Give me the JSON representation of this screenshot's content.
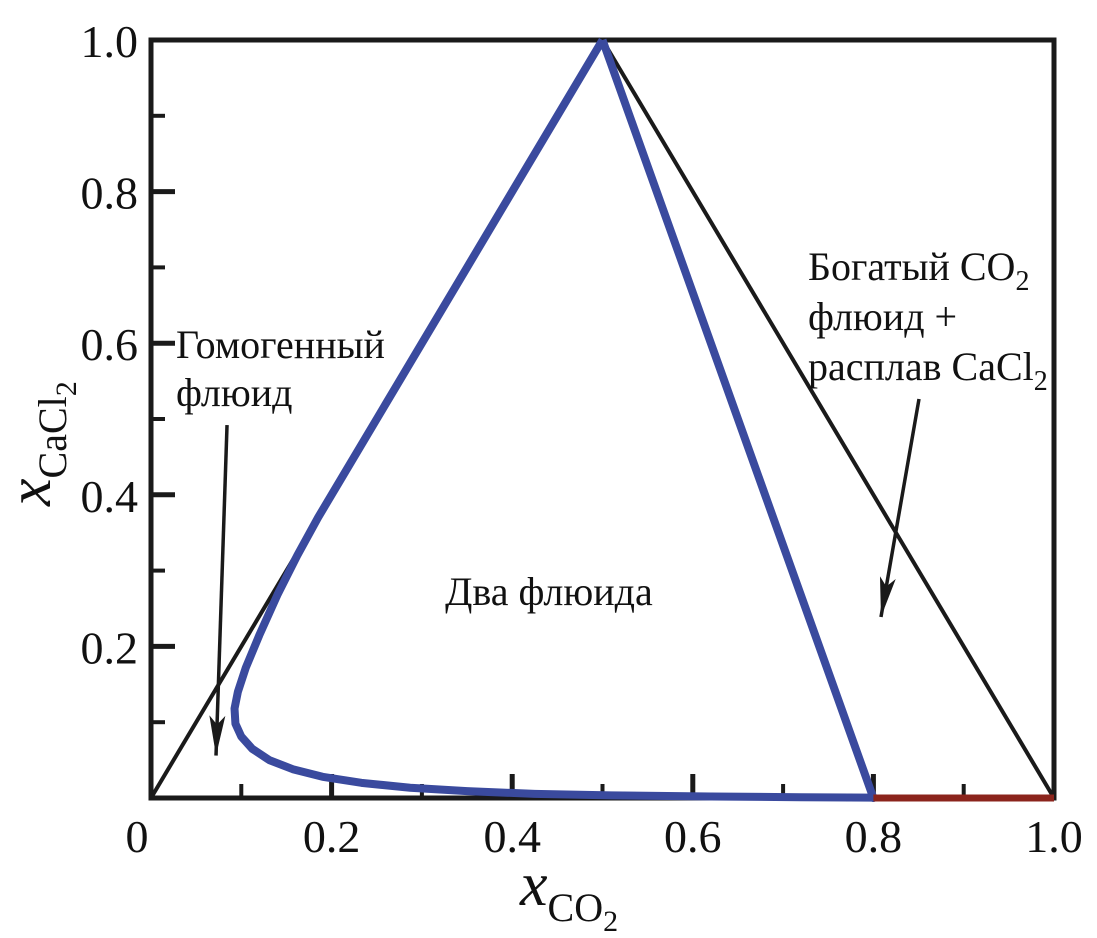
{
  "figure": {
    "background": "#ffffff",
    "colors": {
      "frame": "#1a1a1a",
      "mixing_line": "#1a1a1a",
      "two_fluid_boundary_blue": "#3a4a9e",
      "cacl2_melt_red": "#8b241c",
      "text": "#111111"
    }
  },
  "chart_data": {
    "type": "line",
    "title": "",
    "xlabel": {
      "base": "x",
      "sub": "CO",
      "subsub": "2"
    },
    "ylabel": {
      "base": "x",
      "sub": "CaCl",
      "subsub": "2"
    },
    "xlim": [
      0,
      1
    ],
    "ylim": [
      0,
      1
    ],
    "grid": false,
    "legend": "none",
    "x_ticks": {
      "major": [
        {
          "v": 0,
          "label": "0",
          "dx": -14
        },
        {
          "v": 0.2,
          "label": "0.2"
        },
        {
          "v": 0.4,
          "label": "0.4"
        },
        {
          "v": 0.6,
          "label": "0.6"
        },
        {
          "v": 0.8,
          "label": "0.8"
        },
        {
          "v": 1.0,
          "label": "1.0"
        }
      ],
      "minor": [
        0.1,
        0.3,
        0.5,
        0.7,
        0.9
      ]
    },
    "y_ticks": {
      "major": [
        {
          "v": 0.2,
          "label": "0.2"
        },
        {
          "v": 0.4,
          "label": "0.4"
        },
        {
          "v": 0.6,
          "label": "0.6"
        },
        {
          "v": 0.8,
          "label": "0.8"
        },
        {
          "v": 1.0,
          "label": "1.0"
        }
      ],
      "minor": [
        0.1,
        0.3,
        0.5,
        0.7,
        0.9
      ]
    },
    "series": [
      {
        "name": "mixing-line-left-edge",
        "color": "#1a1a1a",
        "width": 4,
        "points": [
          [
            0,
            0
          ],
          [
            0.5,
            1.0
          ]
        ]
      },
      {
        "name": "mixing-line-right-edge",
        "color": "#1a1a1a",
        "width": 4,
        "points": [
          [
            0.5,
            1.0
          ],
          [
            1.0,
            0
          ]
        ]
      },
      {
        "name": "two-fluid-phase-boundary",
        "color": "#3a4a9e",
        "width": 8,
        "points": [
          [
            0.5,
            1.0
          ],
          [
            0.45,
            0.9
          ],
          [
            0.4,
            0.8
          ],
          [
            0.35,
            0.7
          ],
          [
            0.3,
            0.6
          ],
          [
            0.25,
            0.5
          ],
          [
            0.215,
            0.43
          ],
          [
            0.185,
            0.37
          ],
          [
            0.162,
            0.32
          ],
          [
            0.14,
            0.268
          ],
          [
            0.12,
            0.215
          ],
          [
            0.105,
            0.172
          ],
          [
            0.0962,
            0.14
          ],
          [
            0.0925,
            0.118
          ],
          [
            0.0935,
            0.098
          ],
          [
            0.1,
            0.081
          ],
          [
            0.112,
            0.065
          ],
          [
            0.131,
            0.05
          ],
          [
            0.157,
            0.038
          ],
          [
            0.19,
            0.028
          ],
          [
            0.233,
            0.02
          ],
          [
            0.287,
            0.0135
          ],
          [
            0.35,
            0.009
          ],
          [
            0.425,
            0.0055
          ],
          [
            0.51,
            0.0035
          ],
          [
            0.62,
            0.002
          ],
          [
            0.72,
            0.001
          ],
          [
            0.8,
            0.0005
          ],
          [
            0.8,
            0
          ],
          [
            0.5,
            1.0
          ]
        ]
      },
      {
        "name": "cacl2-melt-axis-segment",
        "color": "#8b241c",
        "width": 7,
        "points": [
          [
            0.8,
            0
          ],
          [
            1.0,
            0
          ]
        ]
      }
    ],
    "annotations": [
      {
        "id": "homogeneous-fluid",
        "align": "left",
        "fx": 0.0277,
        "fy": 0.4195,
        "font_size": 40,
        "line_height": 48,
        "lines": [
          {
            "t": "Гомогенный"
          },
          {
            "t": "флюид"
          }
        ],
        "arrow": {
          "x1": 0.0842,
          "y1": 0.508,
          "x2": 0.072,
          "y2": 0.944
        }
      },
      {
        "id": "two-fluids",
        "align": "center",
        "fx": 0.4407,
        "fy": 0.7454,
        "font_size": 40,
        "line_height": 48,
        "lines": [
          {
            "t": "Два флюида"
          }
        ]
      },
      {
        "id": "co2-rich-fluid-plus-cacl2-melt",
        "align": "left",
        "fx": 0.7276,
        "fy": 0.3166,
        "font_size": 40,
        "line_height": 50,
        "lines": [
          {
            "t": "Богатый CO",
            "sub": "2"
          },
          {
            "t": "флюид +"
          },
          {
            "t": "расплав CaCl",
            "sub": "2"
          }
        ],
        "arrow": {
          "x1": 0.8505,
          "y1": 0.4736,
          "x2": 0.8084,
          "y2": 0.7612
        }
      }
    ]
  }
}
